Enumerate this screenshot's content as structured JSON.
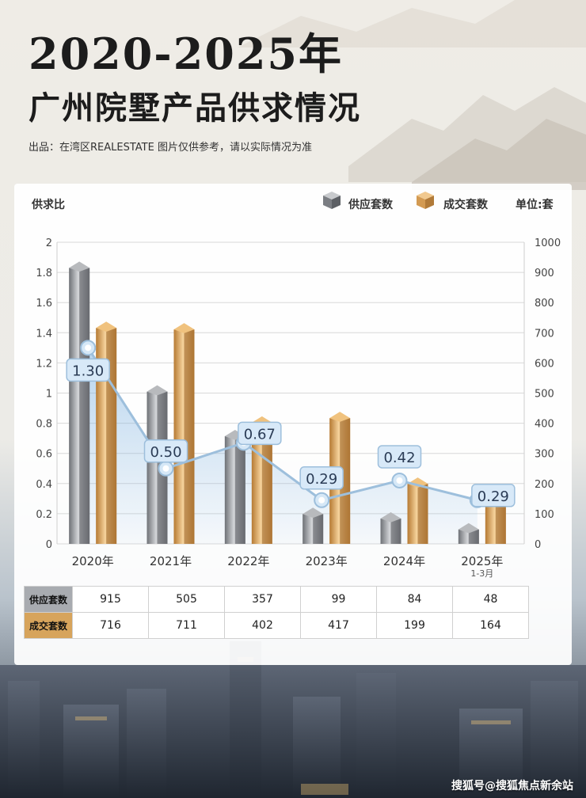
{
  "title": "2020-2025年",
  "subtitle": "广州院墅产品供求情况",
  "source_note": "出品：在湾区REALESTATE   图片仅供参考，请以实际情况为准",
  "watermark": "搜狐号@搜狐焦点新余站",
  "colors": {
    "supply": "#8e9196",
    "deal": "#d39a52",
    "ratio_line": "#a9c8e4",
    "ratio_label": "#d8e9f8"
  },
  "legend": {
    "supply": "供应套数",
    "deal": "成交套数",
    "unit": "单位:套"
  },
  "chart_data": {
    "type": "bar",
    "left_axis_label": "供求比",
    "left_ylim": [
      0,
      2
    ],
    "left_ticks": [
      "0",
      "0.2",
      "0.4",
      "0.6",
      "0.8",
      "1",
      "1.2",
      "1.4",
      "1.6",
      "1.8",
      "2"
    ],
    "right_ylim": [
      0,
      1000
    ],
    "right_ticks": [
      "0",
      "100",
      "200",
      "300",
      "400",
      "500",
      "600",
      "700",
      "800",
      "900",
      "1000"
    ],
    "categories": [
      "2020年",
      "2021年",
      "2022年",
      "2023年",
      "2024年",
      "2025年"
    ],
    "category_notes": [
      "",
      "",
      "",
      "",
      "",
      "1-3月"
    ],
    "series": [
      {
        "name": "供应套数",
        "axis": "right",
        "values": [
          915,
          505,
          357,
          99,
          84,
          48
        ]
      },
      {
        "name": "成交套数",
        "axis": "right",
        "values": [
          716,
          711,
          402,
          417,
          199,
          164
        ]
      }
    ],
    "ratio": {
      "axis": "left",
      "values": [
        1.3,
        0.5,
        0.67,
        0.29,
        0.42,
        0.29
      ],
      "labels": [
        "1.30",
        "0.50",
        "0.67",
        "0.29",
        "0.42",
        "0.29"
      ]
    },
    "grid": true,
    "legend_position": "top-right"
  },
  "table": {
    "rows": [
      {
        "header": "供应套数",
        "values": [
          "915",
          "505",
          "357",
          "99",
          "84",
          "48"
        ]
      },
      {
        "header": "成交套数",
        "values": [
          "716",
          "711",
          "402",
          "417",
          "199",
          "164"
        ]
      }
    ]
  }
}
